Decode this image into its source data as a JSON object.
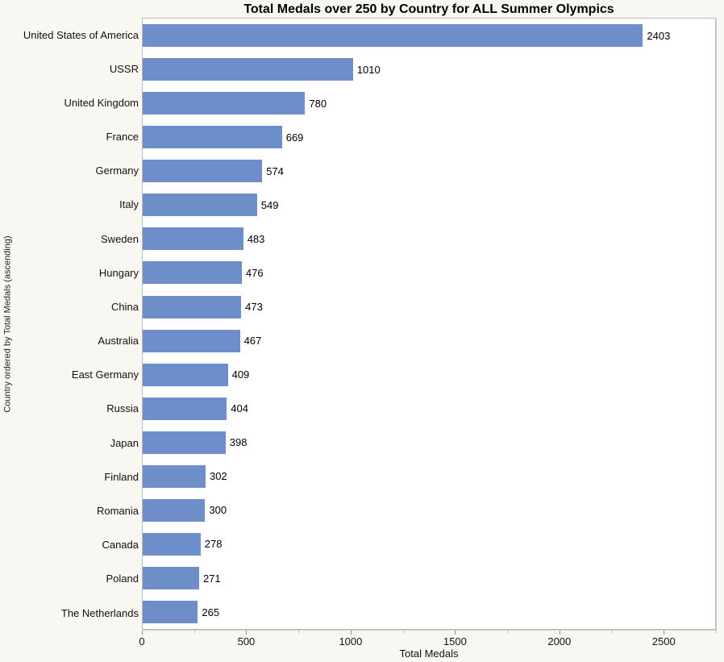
{
  "page": {
    "background_color": "#f8f7f1",
    "plot_background_color": "#ffffff",
    "plot_border_color": "#b9b9b6"
  },
  "chart_data": {
    "type": "bar",
    "orientation": "horizontal",
    "title": "Total Medals over 250 by Country for ALL Summer Olympics",
    "xlabel": "Total Medals",
    "ylabel": "Country ordered by Total Medals (ascending)",
    "xlim": [
      0,
      2750
    ],
    "x_major_ticks": [
      0,
      500,
      1000,
      1500,
      2000,
      2500
    ],
    "x_minor_ticks": [
      250,
      750,
      1250,
      1750,
      2250,
      2750
    ],
    "grid": false,
    "legend": false,
    "bar_color": "#6d8ec8",
    "value_labels_shown": true,
    "categories": [
      "United States of America",
      "USSR",
      "United Kingdom",
      "France",
      "Germany",
      "Italy",
      "Sweden",
      "Hungary",
      "China",
      "Australia",
      "East Germany",
      "Russia",
      "Japan",
      "Finland",
      "Romania",
      "Canada",
      "Poland",
      "The Netherlands"
    ],
    "values": [
      2403,
      1010,
      780,
      669,
      574,
      549,
      483,
      476,
      473,
      467,
      409,
      404,
      398,
      302,
      300,
      278,
      271,
      265
    ]
  }
}
